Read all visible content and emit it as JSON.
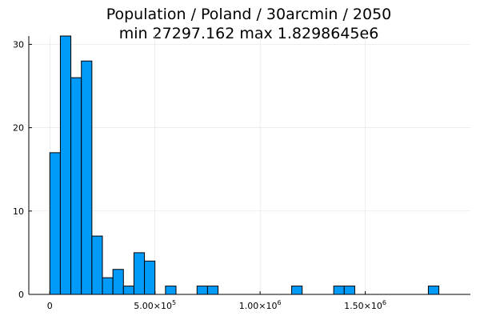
{
  "chart_data": {
    "type": "bar",
    "title": "Population / Poland / 30arcmin / 2050",
    "subtitle": "min 27297.162  max 1.8298645e6",
    "xlabel": "",
    "ylabel": "",
    "bin_width": 50000,
    "xlim": [
      -100000,
      2000000
    ],
    "ylim": [
      0,
      31
    ],
    "bins_start": [
      0,
      50000,
      100000,
      150000,
      200000,
      250000,
      300000,
      350000,
      400000,
      450000,
      500000,
      550000,
      600000,
      650000,
      700000,
      750000,
      800000,
      850000,
      900000,
      950000,
      1000000,
      1050000,
      1100000,
      1150000,
      1200000,
      1250000,
      1300000,
      1350000,
      1400000,
      1450000,
      1500000,
      1550000,
      1600000,
      1650000,
      1700000,
      1750000,
      1800000
    ],
    "values": [
      17,
      31,
      26,
      28,
      7,
      2,
      3,
      1,
      5,
      4,
      0,
      1,
      0,
      0,
      1,
      1,
      0,
      0,
      0,
      0,
      0,
      0,
      0,
      1,
      0,
      0,
      0,
      1,
      1,
      0,
      0,
      0,
      0,
      0,
      0,
      0,
      1
    ],
    "y_ticks": [
      0,
      10,
      20,
      30
    ],
    "y_tick_labels": [
      "0",
      "10",
      "20",
      "30"
    ],
    "x_ticks": [
      0,
      500000,
      1000000,
      1500000
    ],
    "x_tick_labels": [
      {
        "base": "0",
        "exp": ""
      },
      {
        "base": "5.00×10",
        "exp": "5"
      },
      {
        "base": "1.00×10",
        "exp": "6"
      },
      {
        "base": "1.50×10",
        "exp": "6"
      }
    ],
    "grid": true,
    "legend": "none",
    "bar_color": "#009af9"
  }
}
